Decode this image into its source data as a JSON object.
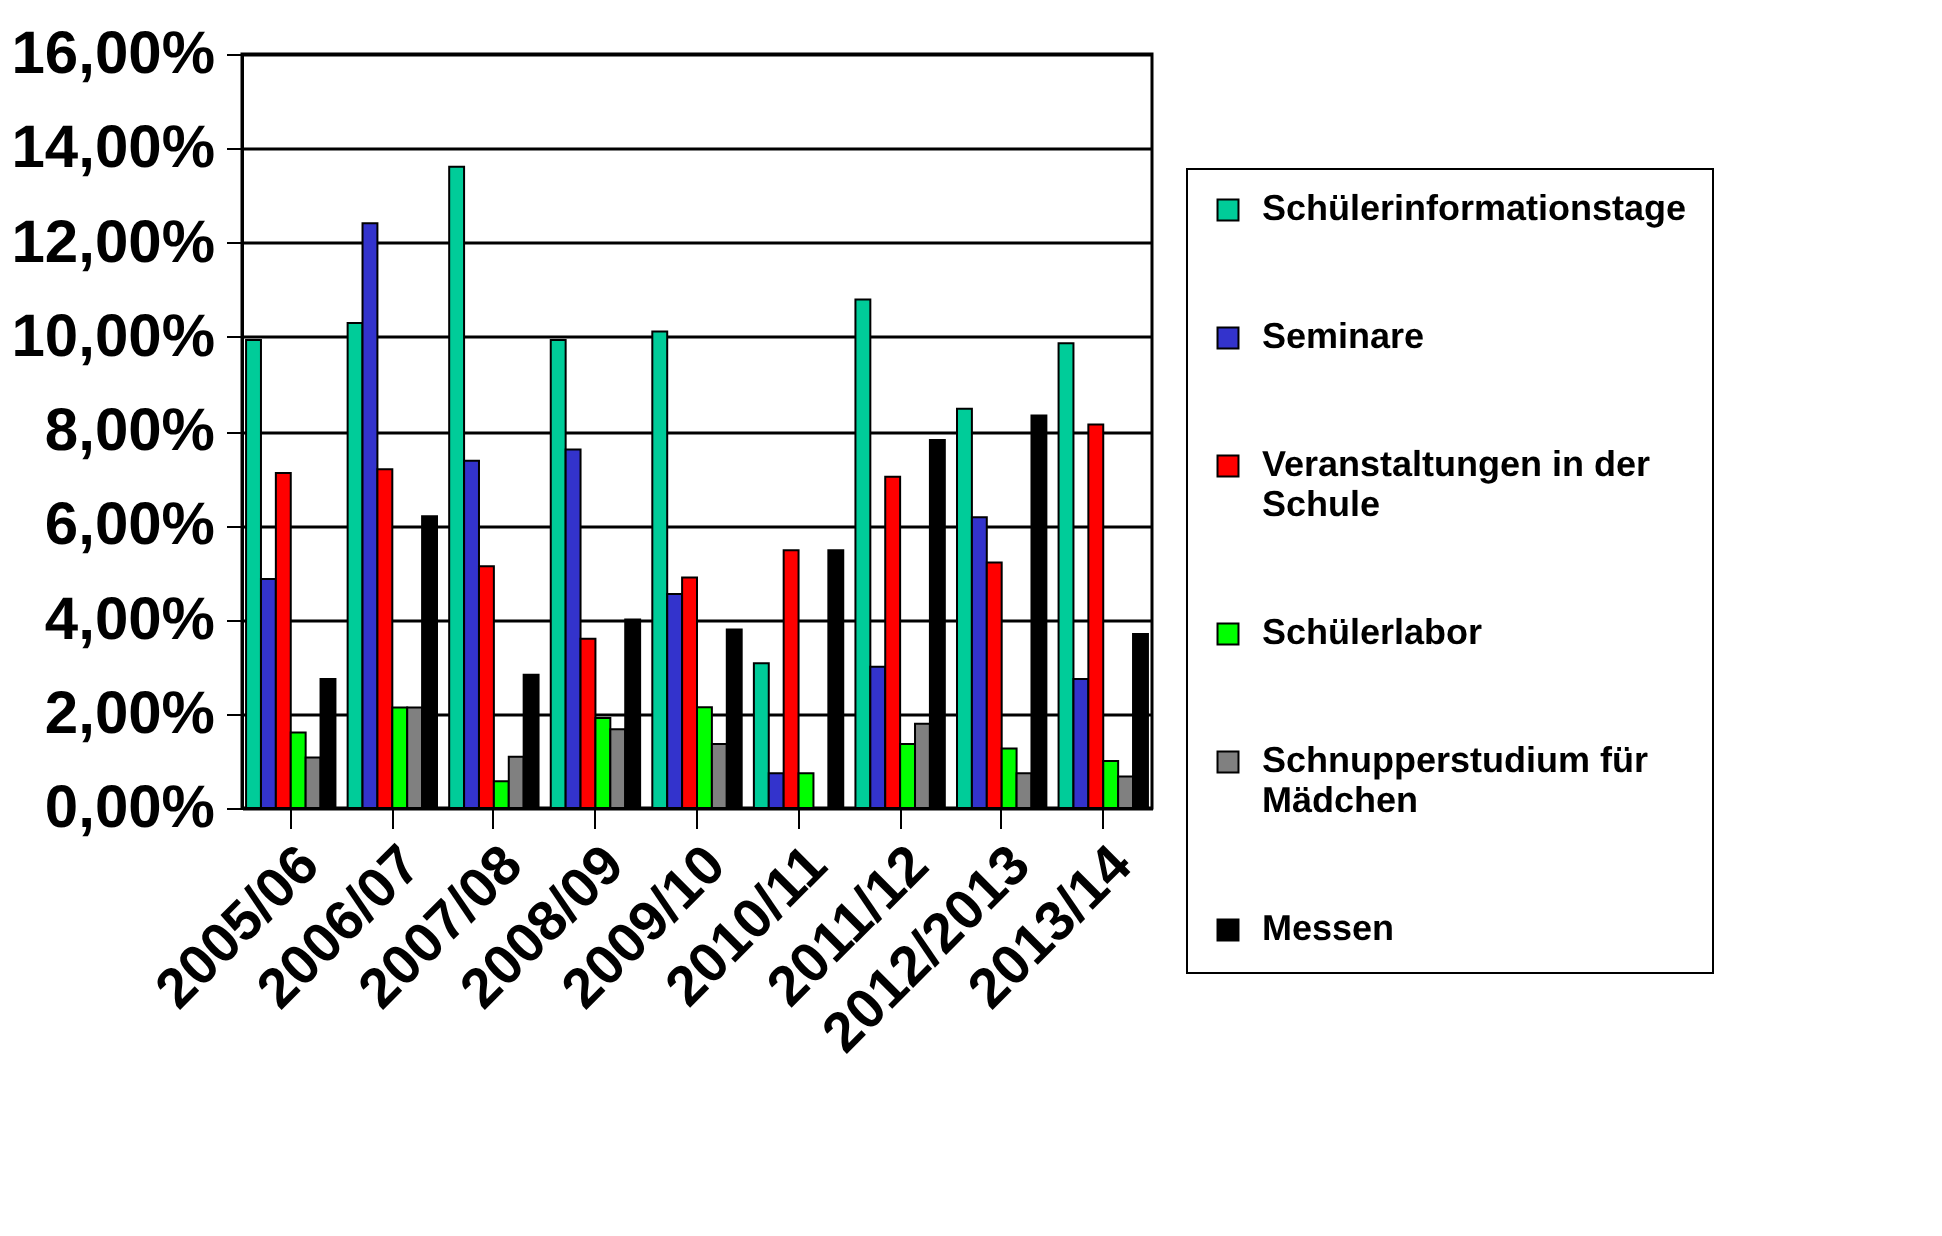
{
  "chart_data": {
    "type": "bar",
    "categories": [
      "2005/06",
      "2006/07",
      "2007/08",
      "2008/09",
      "2009/10",
      "2010/11",
      "2011/12",
      "2012/2013",
      "2013/14"
    ],
    "series": [
      {
        "name": "Schülerinformationstage",
        "color": "#00cc99",
        "values": [
          9.93,
          10.29,
          13.61,
          9.93,
          10.11,
          3.07,
          10.79,
          8.47,
          9.86
        ]
      },
      {
        "name": "Seminare",
        "color": "#3333cc",
        "values": [
          4.86,
          12.41,
          7.37,
          7.61,
          4.54,
          0.74,
          3.0,
          6.17,
          2.74
        ]
      },
      {
        "name": "Veranstaltungen in der Schule",
        "color": "#ff0000",
        "values": [
          7.11,
          7.19,
          5.13,
          3.59,
          4.89,
          5.47,
          7.03,
          5.21,
          8.14
        ]
      },
      {
        "name": "Schülerlabor",
        "color": "#00ff00",
        "values": [
          1.6,
          2.13,
          0.57,
          1.91,
          2.14,
          0.74,
          1.36,
          1.26,
          1.0
        ]
      },
      {
        "name": "Schnupperstudium für Mädchen",
        "color": "#808080",
        "values": [
          1.07,
          2.13,
          1.09,
          1.67,
          1.36,
          null,
          1.79,
          0.74,
          0.67
        ]
      },
      {
        "name": "Messen",
        "color": "#000000",
        "values": [
          2.74,
          6.19,
          2.83,
          4.0,
          3.79,
          5.47,
          7.81,
          8.33,
          3.69
        ]
      }
    ],
    "ylim": [
      0,
      16
    ],
    "yticks": [
      {
        "value": 0,
        "label": "0,00%"
      },
      {
        "value": 2,
        "label": "2,00%"
      },
      {
        "value": 4,
        "label": "4,00%"
      },
      {
        "value": 6,
        "label": "6,00%"
      },
      {
        "value": 8,
        "label": "8,00%"
      },
      {
        "value": 10,
        "label": "10,00%"
      },
      {
        "value": 12,
        "label": "12,00%"
      },
      {
        "value": 14,
        "label": "14,00%"
      },
      {
        "value": 16,
        "label": "16,00%"
      }
    ],
    "grid": "y",
    "legend": "right"
  }
}
